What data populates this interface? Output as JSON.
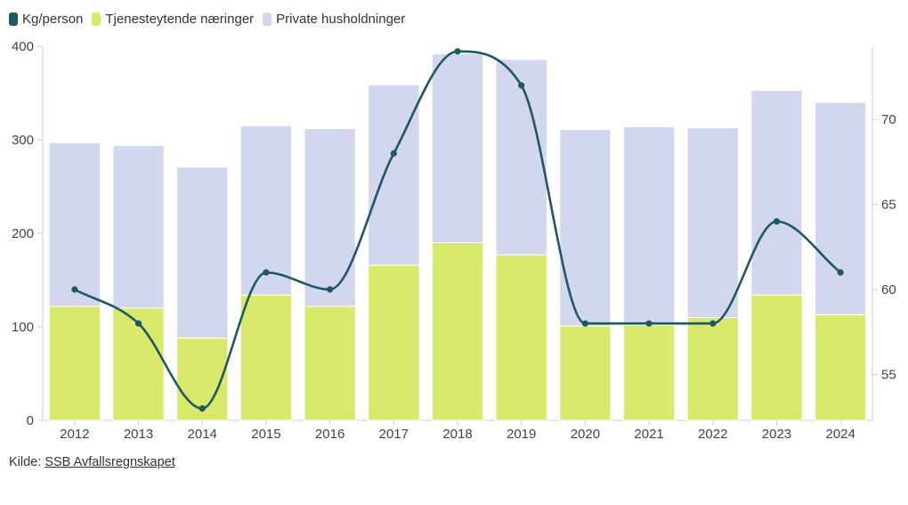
{
  "legend": [
    {
      "label": "Kg/person",
      "color": "#1f5864"
    },
    {
      "label": "Tjenesteytende næringer",
      "color": "#d9e96b"
    },
    {
      "label": "Private husholdninger",
      "color": "#d2d7ed"
    }
  ],
  "source": {
    "prefix": "Kilde: ",
    "link_text": "SSB Avfallsregnskapet"
  },
  "chart_data": {
    "type": "bar",
    "stacked": true,
    "categories": [
      "2012",
      "2013",
      "2014",
      "2015",
      "2016",
      "2017",
      "2018",
      "2019",
      "2020",
      "2021",
      "2022",
      "2023",
      "2024"
    ],
    "series": [
      {
        "name": "Tjenesteytende næringer",
        "type": "bar",
        "axis": "left",
        "color": "#d9e96b",
        "values": [
          122,
          120,
          88,
          134,
          122,
          166,
          190,
          177,
          101,
          102,
          110,
          134,
          113
        ]
      },
      {
        "name": "Private husholdninger",
        "type": "bar",
        "axis": "left",
        "color": "#d2d7ed",
        "values": [
          175,
          174,
          183,
          181,
          190,
          193,
          202,
          209,
          210,
          212,
          203,
          219,
          227
        ]
      },
      {
        "name": "Kg/person",
        "type": "line",
        "axis": "right",
        "color": "#1f5864",
        "values": [
          60,
          58,
          53,
          61,
          60,
          68,
          74,
          72,
          58,
          58,
          58,
          64,
          61
        ]
      }
    ],
    "y_left": {
      "min": 0,
      "max": 400,
      "ticks": [
        0,
        100,
        200,
        300,
        400
      ]
    },
    "y_right": {
      "min": 52.3,
      "max": 74.3,
      "ticks": [
        55,
        60,
        65,
        70
      ]
    },
    "xlabel": "",
    "ylabel": "",
    "legend_position": "top-left",
    "grid": false
  }
}
